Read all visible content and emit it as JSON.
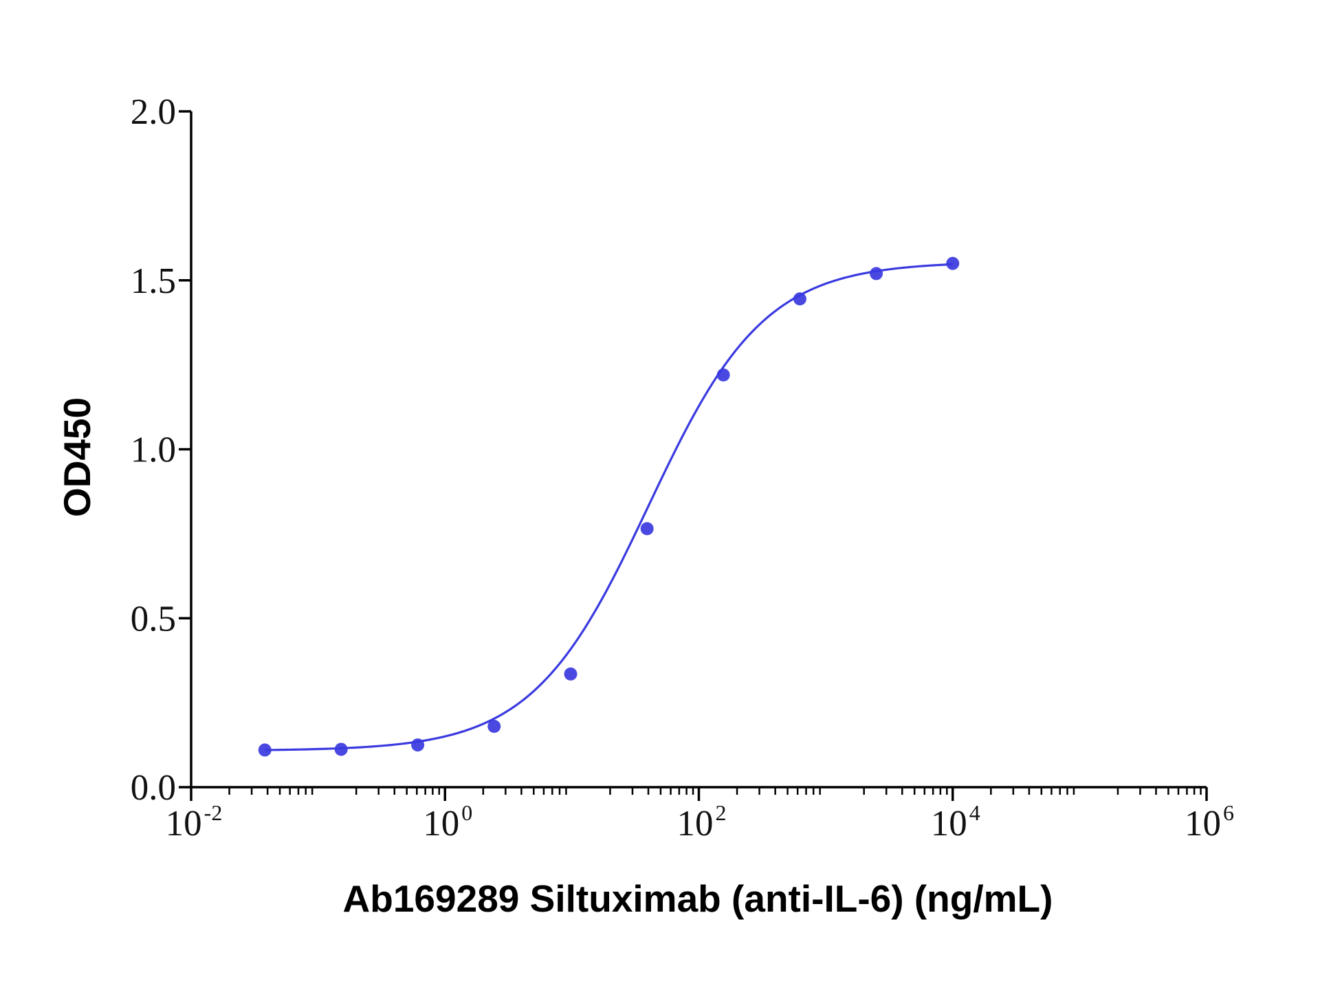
{
  "chart_data": {
    "type": "scatter",
    "xlabel": "Ab169289 Siltuximab (anti-IL-6) (ng/mL)",
    "ylabel": "OD450",
    "x_scale": "log10",
    "xlim": [
      0.01,
      1000000
    ],
    "ylim": [
      0,
      2.0
    ],
    "y_ticks": [
      "0.0",
      "0.5",
      "1.0",
      "1.5",
      "2.0"
    ],
    "y_tick_values": [
      0,
      0.5,
      1.0,
      1.5,
      2.0
    ],
    "x_ticks": [
      {
        "base": "10",
        "exp": "-2",
        "value": 0.01
      },
      {
        "base": "10",
        "exp": "0",
        "value": 1
      },
      {
        "base": "10",
        "exp": "2",
        "value": 100
      },
      {
        "base": "10",
        "exp": "4",
        "value": 10000
      },
      {
        "base": "10",
        "exp": "6",
        "value": 1000000
      }
    ],
    "grid": false,
    "series": [
      {
        "color": "#3a3ae0",
        "x": [
          0.0381,
          0.152,
          0.61,
          2.44,
          9.77,
          39.1,
          156,
          625,
          2500,
          10000
        ],
        "y": [
          0.11,
          0.112,
          0.125,
          0.18,
          0.335,
          0.765,
          1.22,
          1.445,
          1.52,
          1.55
        ],
        "fit": {
          "model": "4PL",
          "bottom": 0.108,
          "top": 1.555,
          "ec50": 40,
          "hill": 0.95
        }
      }
    ]
  }
}
